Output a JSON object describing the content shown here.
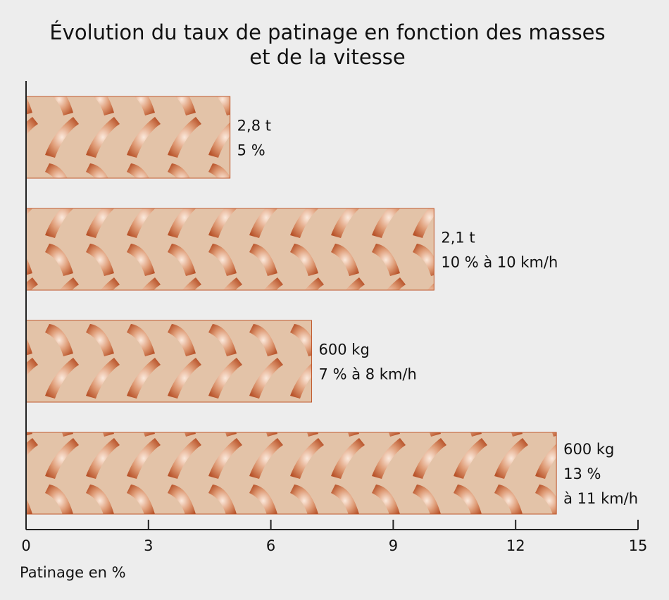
{
  "chart_data": {
    "type": "bar",
    "orientation": "horizontal",
    "title": [
      "Évolution du taux de patinage en fonction des masses",
      "et de la vitesse"
    ],
    "xlabel": "Patinage en %",
    "xlim": [
      0,
      15
    ],
    "xticks": [
      0,
      3,
      6,
      9,
      12,
      15
    ],
    "grid": false,
    "bars": [
      {
        "value": 5,
        "label": [
          "2,8 t",
          "5 %"
        ]
      },
      {
        "value": 10,
        "label": [
          "2,1 t",
          "10 % à 10 km/h"
        ]
      },
      {
        "value": 7,
        "label": [
          "600 kg",
          "7 % à 8 km/h"
        ]
      },
      {
        "value": 13,
        "label": [
          "600 kg",
          "13 %",
          "à 11 km/h"
        ]
      }
    ],
    "colors": {
      "background": "#ededed",
      "bar_fill": "#e3c3a8",
      "tread": "#c0582c",
      "tread_light": "#fbe9dc",
      "axis": "#222222"
    }
  }
}
